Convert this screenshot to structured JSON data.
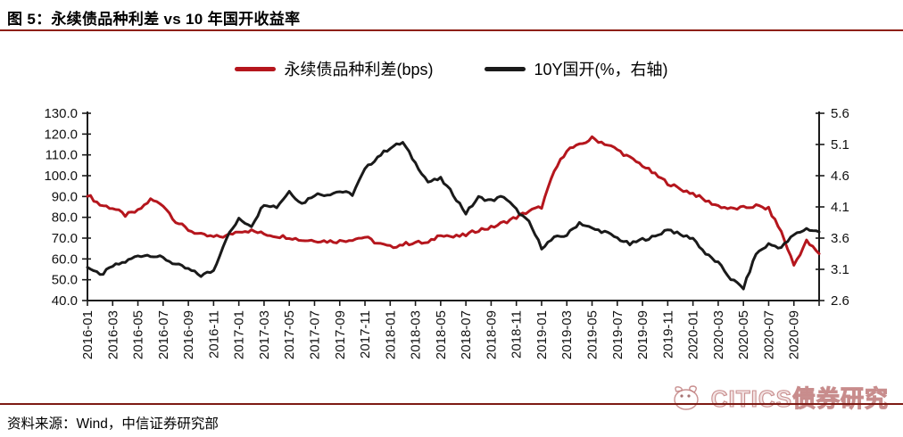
{
  "header": {
    "title": "图 5：永续债品种利差 vs 10 年国开收益率"
  },
  "legend": [
    {
      "label": "永续债品种利差(bps)",
      "color": "#b5161d"
    },
    {
      "label": "10Y国开(%，右轴)",
      "color": "#1a1a1a"
    }
  ],
  "footer": {
    "source": "资料来源：Wind，中信证券研究部",
    "watermark": "CITICS债券研究"
  },
  "chart_data": {
    "type": "line",
    "title": "永续债品种利差 vs 10年国开收益率",
    "grid": false,
    "legend_position": "top",
    "x": [
      "2016-01",
      "2016-02",
      "2016-03",
      "2016-04",
      "2016-05",
      "2016-06",
      "2016-07",
      "2016-08",
      "2016-09",
      "2016-10",
      "2016-11",
      "2016-12",
      "2017-01",
      "2017-02",
      "2017-03",
      "2017-04",
      "2017-05",
      "2017-06",
      "2017-07",
      "2017-08",
      "2017-09",
      "2017-10",
      "2017-11",
      "2017-12",
      "2018-01",
      "2018-02",
      "2018-03",
      "2018-04",
      "2018-05",
      "2018-06",
      "2018-07",
      "2018-08",
      "2018-09",
      "2018-10",
      "2018-11",
      "2018-12",
      "2019-01",
      "2019-02",
      "2019-03",
      "2019-04",
      "2019-05",
      "2019-06",
      "2019-07",
      "2019-08",
      "2019-09",
      "2019-10",
      "2019-11",
      "2019-12",
      "2020-01",
      "2020-02",
      "2020-03",
      "2020-04",
      "2020-05",
      "2020-06",
      "2020-07",
      "2020-08",
      "2020-09",
      "2020-10",
      "2020-11"
    ],
    "x_tick_labels": [
      "2016-01",
      "2016-03",
      "2016-05",
      "2016-07",
      "2016-09",
      "2016-11",
      "2017-01",
      "2017-03",
      "2017-05",
      "2017-07",
      "2017-09",
      "2017-11",
      "2018-01",
      "2018-03",
      "2018-05",
      "2018-07",
      "2018-09",
      "2018-11",
      "2019-01",
      "2019-03",
      "2019-05",
      "2019-07",
      "2019-09",
      "2019-11",
      "2020-01",
      "2020-03",
      "2020-05",
      "2020-07",
      "2020-09"
    ],
    "y_left": {
      "min": 40,
      "max": 130,
      "ticks": [
        "130.0",
        "120.0",
        "110.0",
        "100.0",
        "90.0",
        "80.0",
        "70.0",
        "60.0",
        "50.0",
        "40.0"
      ]
    },
    "y_right": {
      "min": 2.6,
      "max": 5.6,
      "ticks": [
        "5.6",
        "5.1",
        "4.6",
        "4.1",
        "3.6",
        "3.1",
        "2.6"
      ]
    },
    "series": [
      {
        "name": "永续债品种利差(bps)",
        "axis": "left",
        "color": "#b5161d",
        "values": [
          91,
          86,
          84.5,
          81,
          83,
          88.5,
          86,
          78,
          74,
          71.5,
          70.5,
          71,
          73.5,
          73.5,
          72,
          71,
          70.5,
          69,
          69,
          68.5,
          68.5,
          69.5,
          70.5,
          67.5,
          65.7,
          67,
          68,
          67.5,
          72,
          70.5,
          71.5,
          74,
          75,
          77.5,
          80,
          83,
          85,
          102,
          112.5,
          114.5,
          118,
          115.5,
          112.5,
          108.5,
          105,
          100.5,
          96.5,
          93.5,
          91.5,
          88,
          85.5,
          84,
          84.5,
          85.5,
          84,
          73,
          57,
          68.5,
          62.5
        ]
      },
      {
        "name": "10Y国开(%，右轴)",
        "axis": "right",
        "color": "#1a1a1a",
        "values": [
          3.15,
          3.0,
          3.15,
          3.22,
          3.32,
          3.33,
          3.28,
          3.18,
          3.1,
          3.0,
          3.08,
          3.6,
          3.9,
          3.8,
          4.15,
          4.1,
          4.35,
          4.15,
          4.3,
          4.3,
          4.35,
          4.3,
          4.7,
          4.9,
          5.05,
          5.13,
          4.8,
          4.5,
          4.55,
          4.3,
          4.0,
          4.25,
          4.2,
          4.27,
          4.05,
          3.85,
          3.45,
          3.6,
          3.65,
          3.85,
          3.75,
          3.7,
          3.6,
          3.5,
          3.58,
          3.62,
          3.75,
          3.65,
          3.6,
          3.35,
          3.2,
          2.95,
          2.8,
          3.35,
          3.5,
          3.45,
          3.65,
          3.75,
          3.7
        ]
      }
    ]
  }
}
